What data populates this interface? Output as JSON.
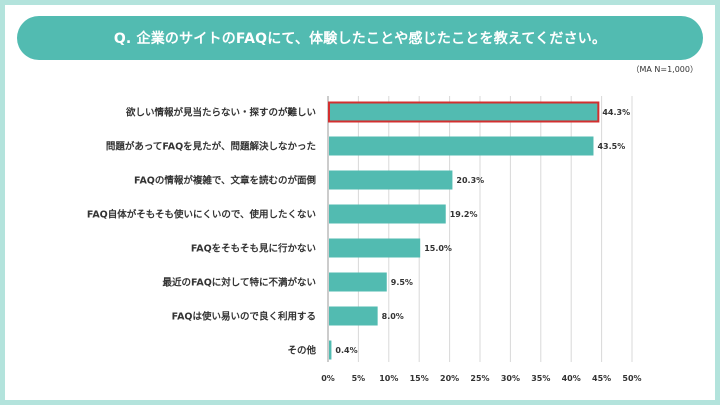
{
  "title": "Q. 企業のサイトのFAQにて、体験したことや感じたことを教えてください。",
  "note": "（MA N=1,000）",
  "colors": {
    "bar": "#52bbb1",
    "highlight_border": "#d32f2f",
    "grid": "#d8d8d8",
    "header": "#52bbb1"
  },
  "chart_data": {
    "type": "bar",
    "orientation": "horizontal",
    "title": "Q. 企業のサイトのFAQにて、体験したことや感じたことを教えてください。",
    "categories": [
      "欲しい情報が見当たらない・探すのが難しい",
      "問題があってFAQを見たが、問題解決しなかった",
      "FAQの情報が複雑で、文章を読むのが面倒",
      "FAQ自体がそもそも使いにくいので、使用したくない",
      "FAQをそもそも見に行かない",
      "最近のFAQに対して特に不満がない",
      "FAQは使い易いので良く利用する",
      "その他"
    ],
    "values": [
      44.3,
      43.5,
      20.3,
      19.2,
      15.0,
      9.5,
      8.0,
      0.4
    ],
    "value_labels": [
      "44.3%",
      "43.5%",
      "20.3%",
      "19.2%",
      "15.0%",
      "9.5%",
      "8.0%",
      "0.4%"
    ],
    "highlight_index": 0,
    "xlim": [
      0,
      50
    ],
    "xticks": [
      0,
      5,
      10,
      15,
      20,
      25,
      30,
      35,
      40,
      45,
      50
    ],
    "xtick_labels": [
      "0%",
      "5%",
      "10%",
      "15%",
      "20%",
      "25%",
      "30%",
      "35%",
      "40%",
      "45%",
      "50%"
    ],
    "grid": true,
    "xlabel": "",
    "ylabel": ""
  }
}
